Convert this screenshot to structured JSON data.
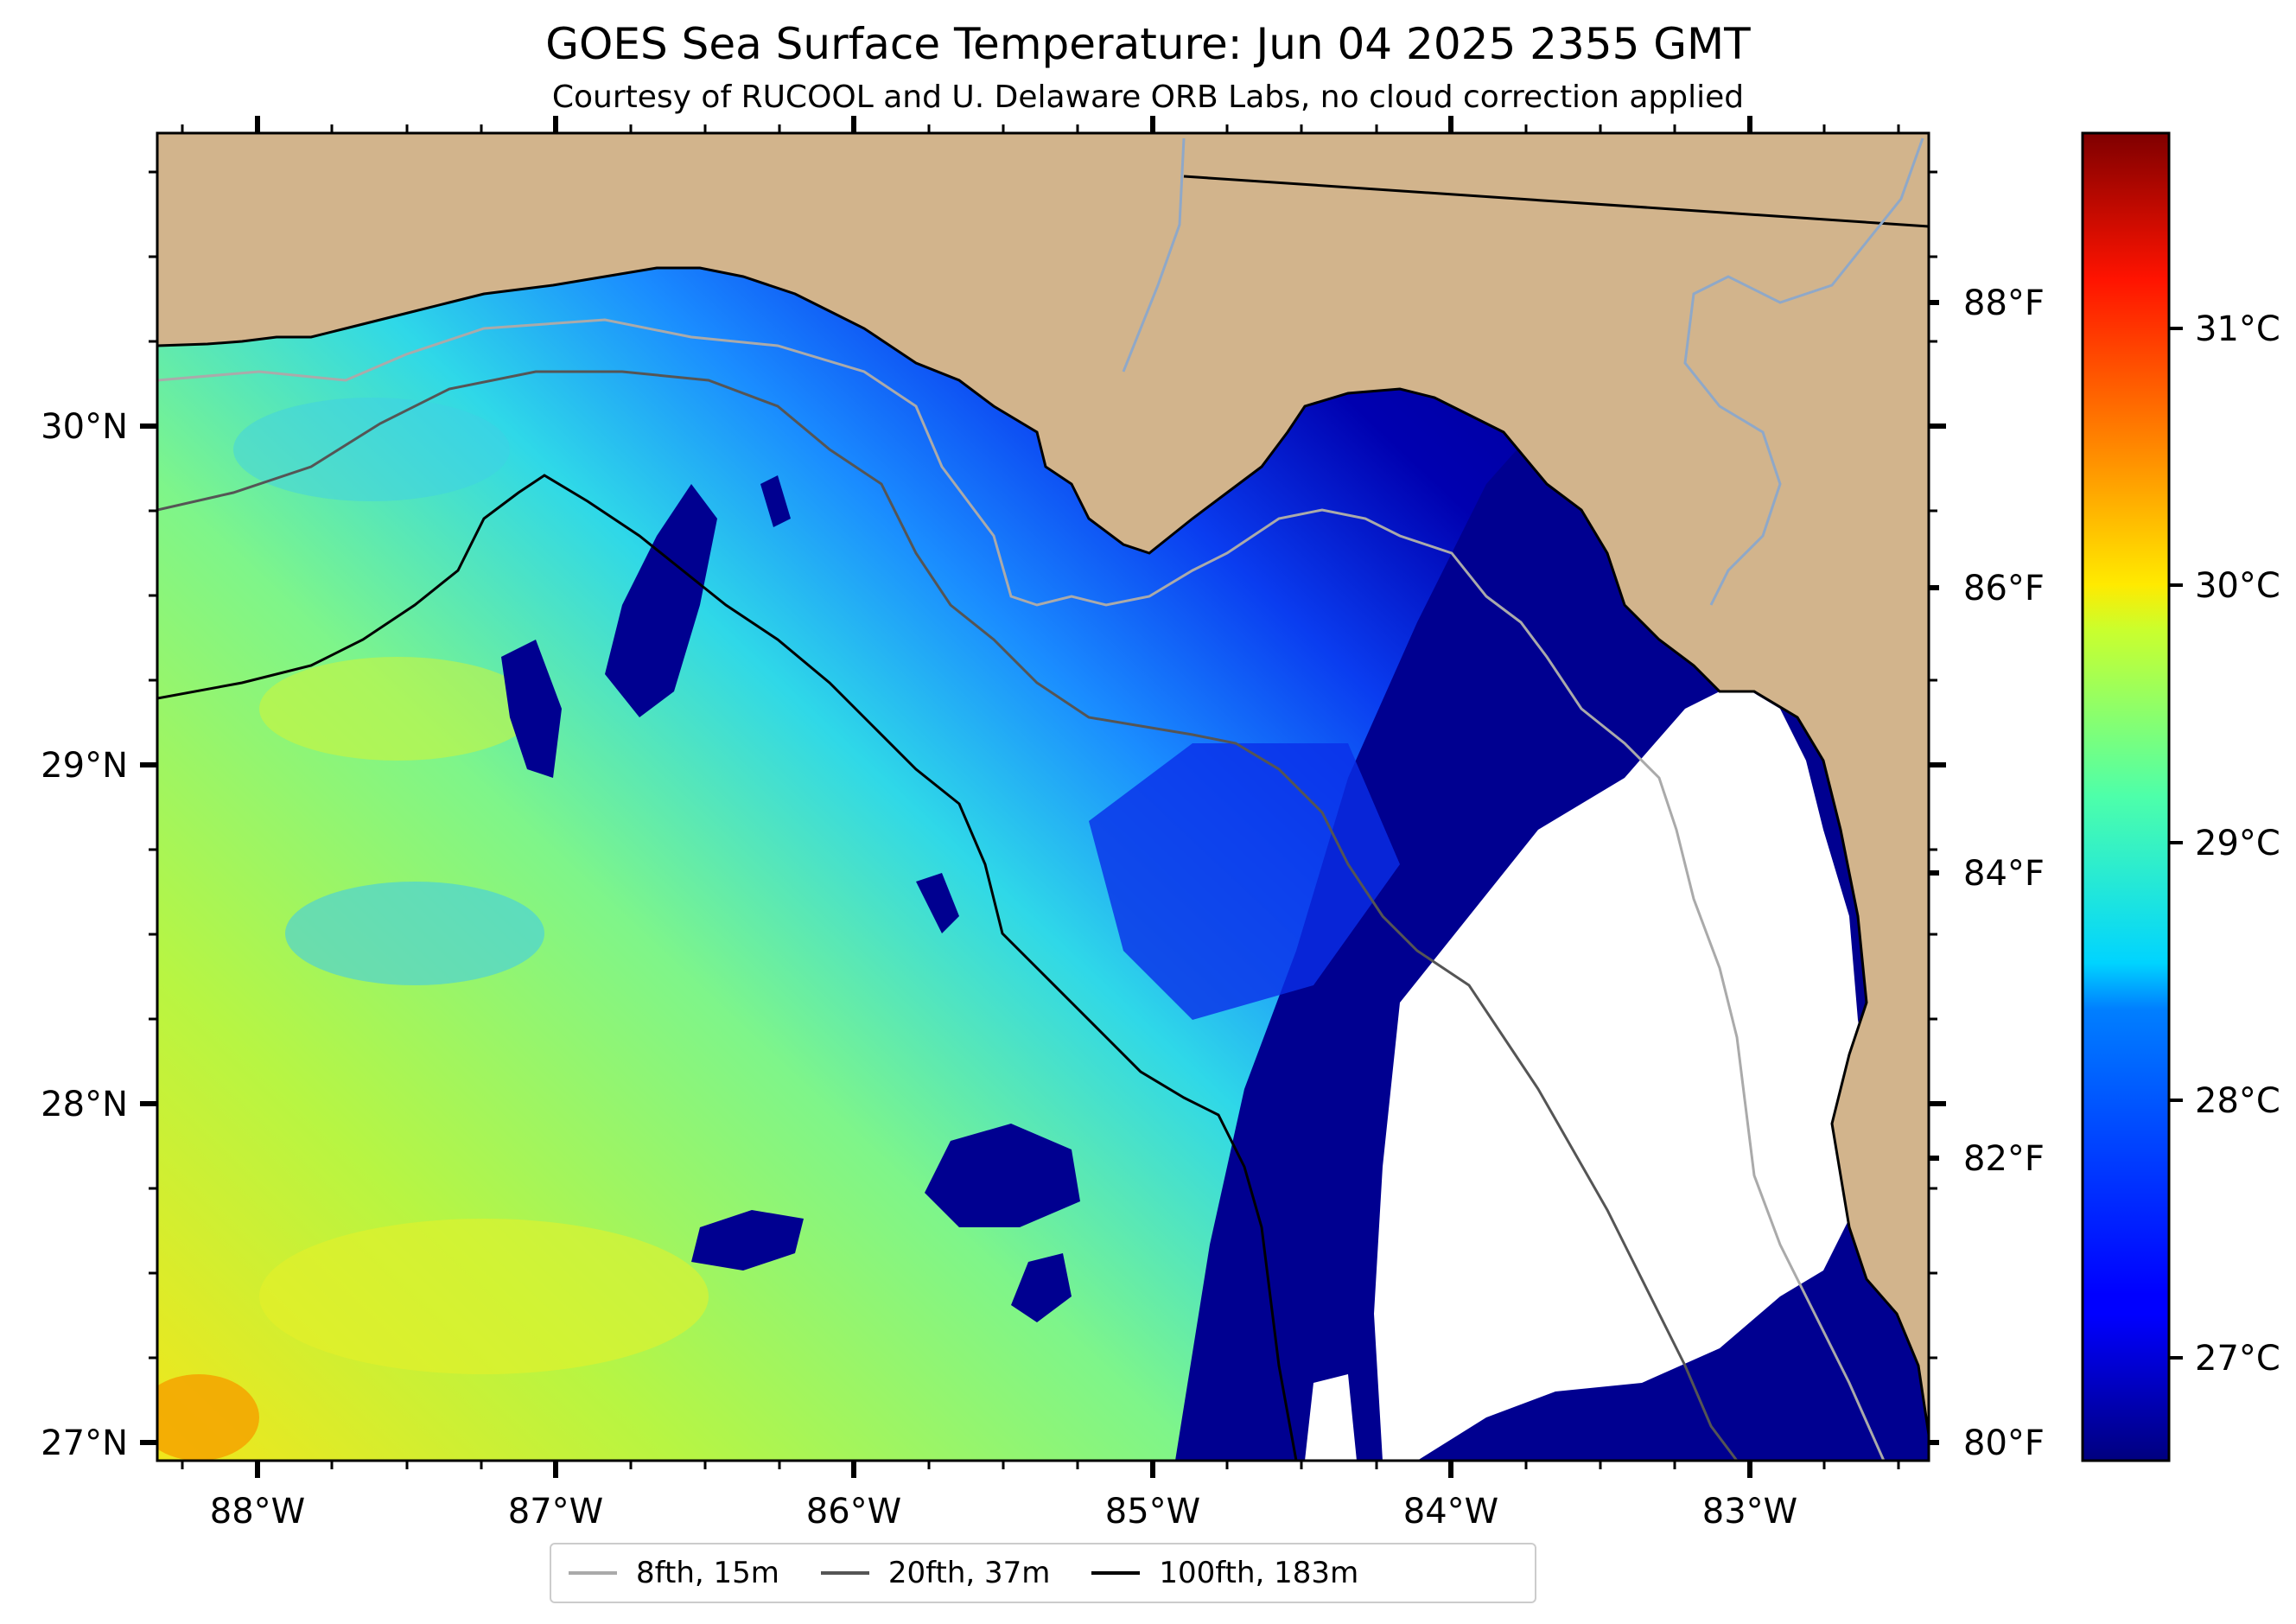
{
  "title": "GOES Sea Surface Temperature: Jun 04 2025 2355 GMT",
  "subtitle": "Courtesy of RUCOOL and U. Delaware ORB Labs, no cloud correction applied",
  "map": {
    "lon_ticks": [
      "88°W",
      "87°W",
      "86°W",
      "85°W",
      "84°W",
      "83°W"
    ],
    "lat_ticks": [
      "30°N",
      "29°N",
      "28°N",
      "27°N"
    ],
    "fahrenheit_ticks": [
      "88°F",
      "86°F",
      "84°F",
      "82°F",
      "80°F"
    ],
    "colors": {
      "land": "#d2b48c",
      "no_data": "#ffffff",
      "coastline": "#000000",
      "river": "#8fa8c8"
    }
  },
  "colorbar": {
    "colormap": "jet",
    "celsius_ticks": [
      "31°C",
      "30°C",
      "29°C",
      "28°C",
      "27°C"
    ]
  },
  "legend": {
    "items": [
      {
        "label": "8fth, 15m",
        "color": "#aaaaaa"
      },
      {
        "label": "20fth, 37m",
        "color": "#555555"
      },
      {
        "label": "100fth, 183m",
        "color": "#000000"
      }
    ]
  }
}
